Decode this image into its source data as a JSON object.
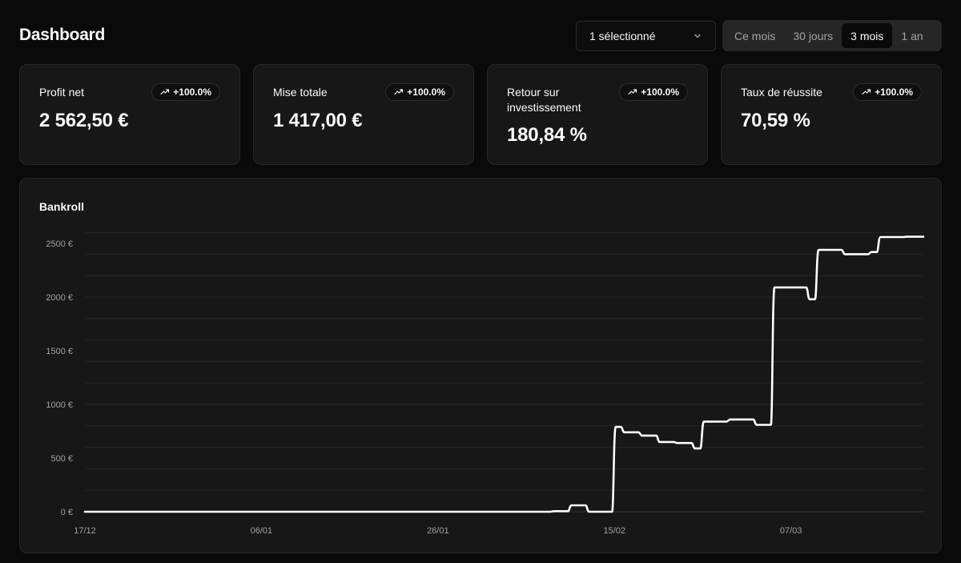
{
  "header": {
    "title": "Dashboard",
    "selector_value": "1 sélectionné",
    "range_tabs": [
      {
        "label": "Ce mois",
        "active": false
      },
      {
        "label": "30 jours",
        "active": false
      },
      {
        "label": "3 mois",
        "active": true
      },
      {
        "label": "1 an",
        "active": false
      }
    ]
  },
  "stats": [
    {
      "label": "Profit net",
      "badge": "+100.0%",
      "value": "2 562,50 €"
    },
    {
      "label": "Mise totale",
      "badge": "+100.0%",
      "value": "1 417,00 €"
    },
    {
      "label": "Retour sur investissement",
      "badge": "+100.0%",
      "value": "180,84 %"
    },
    {
      "label": "Taux de réussite",
      "badge": "+100.0%",
      "value": "70,59 %"
    }
  ],
  "chart": {
    "title": "Bankroll"
  },
  "colors": {
    "background": "#0a0a0a",
    "card": "#171717",
    "border": "#262626",
    "line": "#ffffff",
    "muted_text": "#a3a3a3"
  },
  "chart_data": {
    "type": "line",
    "title": "Bankroll",
    "xlabel": "",
    "ylabel": "",
    "ylim": [
      0,
      2600
    ],
    "yticks": [
      0,
      500,
      1000,
      1500,
      2000,
      2500
    ],
    "ytick_labels": [
      "0 €",
      "500 €",
      "1000 €",
      "1500 €",
      "2000 €",
      "2500 €"
    ],
    "xlim": [
      "2024-12-17",
      "2025-03-22"
    ],
    "xticks": [
      "2024-12-17",
      "2025-01-06",
      "2025-01-26",
      "2025-02-15",
      "2025-03-07"
    ],
    "xtick_labels": [
      "17/12",
      "06/01",
      "26/01",
      "15/02",
      "07/03"
    ],
    "grid": true,
    "curve": "step-after",
    "series": [
      {
        "values": [
          {
            "x": "2024-12-17",
            "y": 0
          },
          {
            "x": "2025-02-06",
            "y": 0
          },
          {
            "x": "2025-02-08",
            "y": 5
          },
          {
            "x": "2025-02-10",
            "y": 60
          },
          {
            "x": "2025-02-12",
            "y": 0
          },
          {
            "x": "2025-02-15",
            "y": 790
          },
          {
            "x": "2025-02-16",
            "y": 740
          },
          {
            "x": "2025-02-18",
            "y": 710
          },
          {
            "x": "2025-02-20",
            "y": 650
          },
          {
            "x": "2025-02-22",
            "y": 640
          },
          {
            "x": "2025-02-24",
            "y": 590
          },
          {
            "x": "2025-02-25",
            "y": 840
          },
          {
            "x": "2025-02-28",
            "y": 860
          },
          {
            "x": "2025-03-03",
            "y": 810
          },
          {
            "x": "2025-03-05",
            "y": 2090
          },
          {
            "x": "2025-03-09",
            "y": 1980
          },
          {
            "x": "2025-03-10",
            "y": 2440
          },
          {
            "x": "2025-03-13",
            "y": 2400
          },
          {
            "x": "2025-03-16",
            "y": 2420
          },
          {
            "x": "2025-03-17",
            "y": 2560
          },
          {
            "x": "2025-03-20",
            "y": 2562.5
          }
        ]
      }
    ]
  }
}
